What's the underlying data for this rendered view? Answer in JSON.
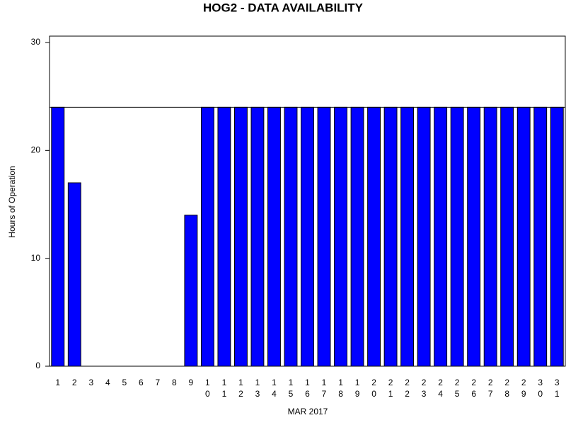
{
  "chart_data": {
    "type": "bar",
    "title": "HOG2 - DATA AVAILABILITY",
    "xlabel": "MAR 2017",
    "ylabel": "Hours of Operation",
    "categories": [
      "1",
      "2",
      "3",
      "4",
      "5",
      "6",
      "7",
      "8",
      "9",
      "10",
      "11",
      "12",
      "13",
      "14",
      "15",
      "16",
      "17",
      "18",
      "19",
      "20",
      "21",
      "22",
      "23",
      "24",
      "25",
      "26",
      "27",
      "28",
      "29",
      "30",
      "31"
    ],
    "values": [
      24,
      17,
      0,
      0,
      0,
      0,
      0,
      0,
      14,
      24,
      24,
      24,
      24,
      24,
      24,
      24,
      24,
      24,
      24,
      24,
      24,
      24,
      24,
      24,
      24,
      24,
      24,
      24,
      24,
      24,
      24
    ],
    "color": "#0000ff",
    "reference_line": 24,
    "ylim": [
      0,
      30
    ],
    "yticks": [
      0,
      10,
      20,
      30
    ]
  }
}
